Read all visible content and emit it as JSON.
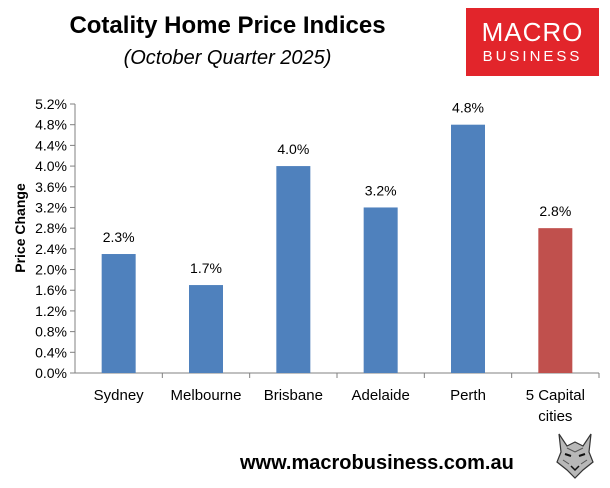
{
  "header": {
    "title": "Cotality Home Price Indices",
    "subtitle": "(October Quarter 2025)"
  },
  "logo": {
    "line1": "MACRO",
    "line2": "BUSINESS",
    "color": "#e2252b"
  },
  "footer": {
    "url": "www.macrobusiness.com.au",
    "mascot_icon": "wolf-icon"
  },
  "chart_data": {
    "type": "bar",
    "title": "Cotality Home Price Indices",
    "subtitle": "(October Quarter 2025)",
    "xlabel": "",
    "ylabel": "Price Change",
    "categories": [
      "Sydney",
      "Melbourne",
      "Brisbane",
      "Adelaide",
      "Perth",
      "5 Capital cities"
    ],
    "category_lines": [
      [
        "Sydney"
      ],
      [
        "Melbourne"
      ],
      [
        "Brisbane"
      ],
      [
        "Adelaide"
      ],
      [
        "Perth"
      ],
      [
        "5 Capital",
        "cities"
      ]
    ],
    "values": [
      2.3,
      1.7,
      4.0,
      3.2,
      4.8,
      2.8
    ],
    "value_labels": [
      "2.3%",
      "1.7%",
      "4.0%",
      "3.2%",
      "4.8%",
      "2.8%"
    ],
    "bar_colors": [
      "#4f81bd",
      "#4f81bd",
      "#4f81bd",
      "#4f81bd",
      "#4f81bd",
      "#c0504d"
    ],
    "ylim": [
      0,
      5.2
    ],
    "yticks": [
      0,
      0.4,
      0.8,
      1.2,
      1.6,
      2.0,
      2.4,
      2.8,
      3.2,
      3.6,
      4.0,
      4.4,
      4.8,
      5.2
    ],
    "ytick_labels": [
      "0.0%",
      "0.4%",
      "0.8%",
      "1.2%",
      "1.6%",
      "2.0%",
      "2.4%",
      "2.8%",
      "3.2%",
      "3.6%",
      "4.0%",
      "4.4%",
      "4.8%",
      "5.2%"
    ],
    "grid": false,
    "legend": "none"
  }
}
